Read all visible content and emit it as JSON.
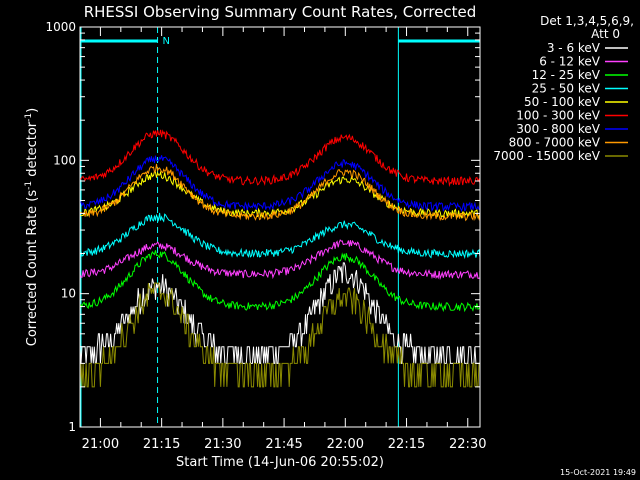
{
  "chart_data": {
    "type": "line",
    "title": "RHESSI Observing Summary Count Rates, Corrected",
    "xlabel": "Start Time (14-Jun-06 20:55:02)",
    "ylabel": "Corrected Count Rate (s-1 detector-1)",
    "ylabel_parts": {
      "main": "Corrected Count Rate (s",
      "sup1": "-1",
      "mid": " detector",
      "sup2": "-1",
      "end": ")"
    },
    "yscale": "log",
    "xlim_min": [
      -5,
      93
    ],
    "ylim": [
      1,
      1000
    ],
    "x_ticks": [
      "21:00",
      "21:15",
      "21:30",
      "21:45",
      "22:00",
      "22:15",
      "22:30"
    ],
    "x_tick_minutes": [
      0,
      15,
      30,
      45,
      60,
      75,
      90
    ],
    "y_ticks": [
      "1",
      "10",
      "100",
      "1000"
    ],
    "y_tick_values": [
      1,
      10,
      100,
      1000
    ],
    "legend_header": [
      "Det 1,3,4,5,6,9,",
      "Att 0"
    ],
    "legend_placement": "right",
    "footer_date": "15-Oct-2021 19:49",
    "night_marker": "N",
    "night_markers": [
      {
        "from_min": -5,
        "to_min": 14,
        "mark_min": 14
      },
      {
        "from_min": 73,
        "to_min": 93,
        "mark_min": 93
      }
    ],
    "series": [
      {
        "name": "3 - 6 keV",
        "color": "#ffffff",
        "base": 3.5,
        "peaks": [
          11.5,
          14.5
        ]
      },
      {
        "name": "6 - 12 keV",
        "color": "#ff40ff",
        "base": 14,
        "peaks": [
          23,
          24
        ]
      },
      {
        "name": "12 - 25 keV",
        "color": "#00ff00",
        "base": 8,
        "peaks": [
          20,
          19
        ]
      },
      {
        "name": "25 - 50 keV",
        "color": "#00ffff",
        "base": 20,
        "peaks": [
          38,
          33
        ]
      },
      {
        "name": "50 - 100 keV",
        "color": "#ffff00",
        "base": 40,
        "peaks": [
          78,
          72
        ]
      },
      {
        "name": "100 - 300 keV",
        "color": "#ff0000",
        "base": 70,
        "peaks": [
          160,
          148
        ]
      },
      {
        "name": "300 - 800 keV",
        "color": "#0000ff",
        "base": 45,
        "peaks": [
          103,
          95
        ]
      },
      {
        "name": "800 - 7000 keV",
        "color": "#ff9900",
        "base": 38,
        "peaks": [
          88,
          82
        ]
      },
      {
        "name": "7000 - 15000 keV",
        "color": "#8b8b00",
        "base": 2.5,
        "peaks": [
          10.5,
          9.5
        ]
      }
    ],
    "peak_minutes": [
      14,
      60
    ]
  }
}
